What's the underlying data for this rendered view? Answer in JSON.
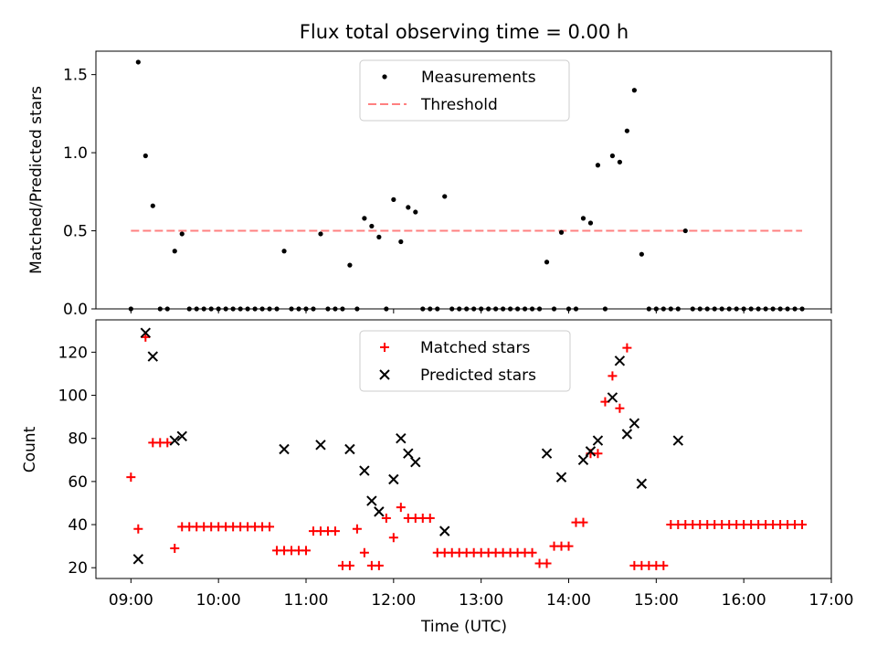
{
  "figure": {
    "title": "Flux total observing time = 0.00 h",
    "xlabel": "Time (UTC)",
    "x_ticks": [
      "09:00",
      "10:00",
      "11:00",
      "12:00",
      "13:00",
      "14:00",
      "15:00",
      "16:00",
      "17:00"
    ]
  },
  "chart_data": [
    {
      "type": "scatter",
      "ylabel": "Matched/Predicted stars",
      "ylim": [
        0,
        1.65
      ],
      "xlim_hours": [
        8.6,
        17.0
      ],
      "y_ticks": [
        "0.0",
        "0.5",
        "1.0",
        "1.5"
      ],
      "legend_placement": "top-center",
      "legend": [
        "Measurements",
        "Threshold"
      ],
      "threshold": {
        "name": "Threshold",
        "y": 0.5,
        "x_range": [
          "09:00",
          "16:40"
        ],
        "color": "#ff8080",
        "style": "dashed"
      },
      "series": [
        {
          "name": "Measurements",
          "color": "#000000",
          "marker": "dot",
          "x": [
            "09:00",
            "09:05",
            "09:10",
            "09:15",
            "09:20",
            "09:25",
            "09:30",
            "09:35",
            "09:40",
            "09:45",
            "09:50",
            "09:55",
            "10:00",
            "10:05",
            "10:10",
            "10:15",
            "10:20",
            "10:25",
            "10:30",
            "10:35",
            "10:40",
            "10:45",
            "10:50",
            "10:55",
            "11:00",
            "11:05",
            "11:10",
            "11:15",
            "11:20",
            "11:25",
            "11:30",
            "11:35",
            "11:40",
            "11:45",
            "11:50",
            "11:55",
            "12:00",
            "12:05",
            "12:10",
            "12:15",
            "12:20",
            "12:25",
            "12:30",
            "12:35",
            "12:40",
            "12:45",
            "12:50",
            "12:55",
            "13:00",
            "13:05",
            "13:10",
            "13:15",
            "13:20",
            "13:25",
            "13:30",
            "13:35",
            "13:40",
            "13:45",
            "13:50",
            "13:55",
            "14:00",
            "14:05",
            "14:10",
            "14:15",
            "14:20",
            "14:25",
            "14:30",
            "14:35",
            "14:40",
            "14:45",
            "14:50",
            "14:55",
            "15:00",
            "15:05",
            "15:10",
            "15:15",
            "15:20",
            "15:25",
            "15:30",
            "15:35",
            "15:40",
            "15:45",
            "15:50",
            "15:55",
            "16:00",
            "16:05",
            "16:10",
            "16:15",
            "16:20",
            "16:25",
            "16:30",
            "16:35",
            "16:40"
          ],
          "y": [
            0.0,
            1.58,
            0.98,
            0.66,
            0.0,
            0.0,
            0.37,
            0.48,
            0.0,
            0.0,
            0.0,
            0.0,
            0.0,
            0.0,
            0.0,
            0.0,
            0.0,
            0.0,
            0.0,
            0.0,
            0.0,
            0.37,
            0.0,
            0.0,
            0.0,
            0.0,
            0.48,
            0.0,
            0.0,
            0.0,
            0.28,
            0.0,
            0.58,
            0.53,
            0.46,
            0.0,
            0.7,
            0.43,
            0.65,
            0.62,
            0.0,
            0.0,
            0.0,
            0.72,
            0.0,
            0.0,
            0.0,
            0.0,
            0.0,
            0.0,
            0.0,
            0.0,
            0.0,
            0.0,
            0.0,
            0.0,
            0.0,
            0.3,
            0.0,
            0.49,
            0.0,
            0.0,
            0.58,
            0.55,
            0.92,
            0.0,
            0.98,
            0.94,
            1.14,
            1.4,
            0.35,
            0.0,
            0.0,
            0.0,
            0.0,
            0.0,
            0.5,
            0.0,
            0.0,
            0.0,
            0.0,
            0.0,
            0.0,
            0.0,
            0.0,
            0.0,
            0.0,
            0.0,
            0.0,
            0.0,
            0.0,
            0.0,
            0.0
          ]
        }
      ]
    },
    {
      "type": "scatter",
      "ylabel": "Count",
      "ylim": [
        15,
        135
      ],
      "xlim_hours": [
        8.6,
        17.0
      ],
      "y_ticks": [
        "20",
        "40",
        "60",
        "80",
        "100",
        "120"
      ],
      "legend_placement": "top-center",
      "legend": [
        "Matched stars",
        "Predicted stars"
      ],
      "series": [
        {
          "name": "Matched stars",
          "color": "#ff0000",
          "marker": "plus",
          "x": [
            "09:00",
            "09:05",
            "09:10",
            "09:15",
            "09:20",
            "09:25",
            "09:30",
            "09:35",
            "09:40",
            "09:45",
            "09:50",
            "09:55",
            "10:00",
            "10:05",
            "10:10",
            "10:15",
            "10:20",
            "10:25",
            "10:30",
            "10:35",
            "10:40",
            "10:45",
            "10:50",
            "10:55",
            "11:00",
            "11:05",
            "11:10",
            "11:15",
            "11:20",
            "11:25",
            "11:30",
            "11:35",
            "11:40",
            "11:45",
            "11:50",
            "11:55",
            "12:00",
            "12:05",
            "12:10",
            "12:15",
            "12:20",
            "12:25",
            "12:30",
            "12:35",
            "12:40",
            "12:45",
            "12:50",
            "12:55",
            "13:00",
            "13:05",
            "13:10",
            "13:15",
            "13:20",
            "13:25",
            "13:30",
            "13:35",
            "13:40",
            "13:45",
            "13:50",
            "13:55",
            "14:00",
            "14:05",
            "14:10",
            "14:15",
            "14:20",
            "14:25",
            "14:30",
            "14:35",
            "14:40",
            "14:45",
            "14:50",
            "14:55",
            "15:00",
            "15:05",
            "15:10",
            "15:15",
            "15:20",
            "15:25",
            "15:30",
            "15:35",
            "15:40",
            "15:45",
            "15:50",
            "15:55",
            "16:00",
            "16:05",
            "16:10",
            "16:15",
            "16:20",
            "16:25",
            "16:30",
            "16:35",
            "16:40"
          ],
          "y": [
            62,
            38,
            127,
            78,
            78,
            78,
            29,
            39,
            39,
            39,
            39,
            39,
            39,
            39,
            39,
            39,
            39,
            39,
            39,
            39,
            28,
            28,
            28,
            28,
            28,
            37,
            37,
            37,
            37,
            21,
            21,
            38,
            27,
            21,
            21,
            43,
            34,
            48,
            43,
            43,
            43,
            43,
            27,
            27,
            27,
            27,
            27,
            27,
            27,
            27,
            27,
            27,
            27,
            27,
            27,
            27,
            22,
            22,
            30,
            30,
            30,
            41,
            41,
            73,
            73,
            97,
            109,
            94,
            122,
            21,
            21,
            21,
            21,
            21,
            40,
            40,
            40,
            40,
            40,
            40,
            40,
            40,
            40,
            40,
            40,
            40,
            40,
            40,
            40,
            40,
            40,
            40,
            40
          ]
        },
        {
          "name": "Predicted stars",
          "color": "#000000",
          "marker": "x",
          "x": [
            "09:05",
            "09:10",
            "09:15",
            "09:30",
            "09:35",
            "10:45",
            "11:10",
            "11:30",
            "11:40",
            "11:45",
            "11:50",
            "12:00",
            "12:05",
            "12:10",
            "12:15",
            "12:35",
            "13:45",
            "13:55",
            "14:10",
            "14:15",
            "14:20",
            "14:30",
            "14:35",
            "14:40",
            "14:45",
            "14:50",
            "15:15"
          ],
          "y": [
            24,
            129,
            118,
            79,
            81,
            75,
            77,
            75,
            65,
            51,
            46,
            61,
            80,
            73,
            69,
            37,
            73,
            62,
            70,
            74,
            79,
            99,
            116,
            82,
            87,
            59,
            79
          ]
        }
      ]
    }
  ]
}
